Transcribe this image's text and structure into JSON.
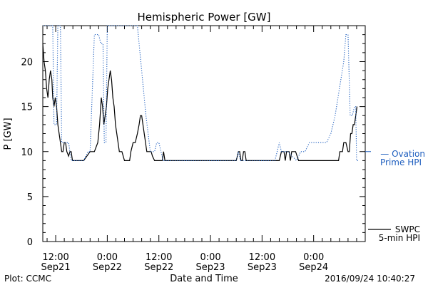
{
  "chart_data": {
    "type": "line",
    "title": "Hemispheric Power [GW]",
    "xlabel": "Date and Time",
    "ylabel": "P [GW]",
    "ylim": [
      0,
      24
    ],
    "xlim": [
      9,
      84
    ],
    "y_ticks": [
      0,
      5,
      10,
      15,
      20
    ],
    "x_ticks": [
      {
        "t": 12,
        "time": "12:00",
        "date": "Sep21"
      },
      {
        "t": 24,
        "time": "0:00",
        "date": "Sep22"
      },
      {
        "t": 36,
        "time": "12:00",
        "date": "Sep22"
      },
      {
        "t": 48,
        "time": "0:00",
        "date": "Sep23"
      },
      {
        "t": 60,
        "time": "12:00",
        "date": "Sep23"
      },
      {
        "t": 72,
        "time": "0:00",
        "date": "Sep24"
      }
    ],
    "series": [
      {
        "name_line1": "SWPC",
        "name_line2": "5-min HPI",
        "color": "#000000",
        "style": "solid",
        "x": [
          9.0,
          9.3,
          9.6,
          9.9,
          10.2,
          10.5,
          10.8,
          11.1,
          11.3,
          11.6,
          11.9,
          12.2,
          12.5,
          12.8,
          13.1,
          13.4,
          13.7,
          14.0,
          14.3,
          14.6,
          15.0,
          15.3,
          15.6,
          15.9,
          16.3,
          16.7,
          17.0,
          17.4,
          18.5,
          20.0,
          21.0,
          21.8,
          22.2,
          22.6,
          22.9,
          23.2,
          23.5,
          23.8,
          24.1,
          24.4,
          24.7,
          25.0,
          25.3,
          25.6,
          25.9,
          26.2,
          26.5,
          26.8,
          27.1,
          27.4,
          27.7,
          28.0,
          28.4,
          28.8,
          29.2,
          29.5,
          30.0,
          30.5,
          31.0,
          31.4,
          31.7,
          32.0,
          32.3,
          32.6,
          32.9,
          33.2,
          33.5,
          33.8,
          34.2,
          34.5,
          35.0,
          35.5,
          36.5,
          36.8,
          37.1,
          37.4,
          38.0,
          42.0,
          46.0,
          50.0,
          54.0,
          54.5,
          54.8,
          55.1,
          55.4,
          55.7,
          56.0,
          56.3,
          56.8,
          60.0,
          63.0,
          64.0,
          64.5,
          64.8,
          65.1,
          65.4,
          65.7,
          66.0,
          66.3,
          66.6,
          66.9,
          67.2,
          67.8,
          68.5,
          71.0,
          74.0,
          76.0,
          77.5,
          77.8,
          78.1,
          78.4,
          78.7,
          79.0,
          79.5,
          80.0,
          80.3,
          80.6,
          80.9,
          81.2,
          81.5,
          81.8,
          82.1
        ],
        "y": [
          22,
          20,
          19,
          17,
          16,
          18,
          19,
          18,
          16,
          15,
          16,
          15,
          13,
          12,
          11,
          10,
          10,
          11,
          11,
          10,
          9.5,
          10,
          10,
          9,
          9,
          9,
          9,
          9,
          9,
          10,
          10,
          11,
          13,
          16,
          15,
          13,
          14,
          15,
          17,
          18,
          19,
          18,
          16,
          15,
          13,
          12,
          11,
          10,
          10,
          10,
          9.5,
          9,
          9,
          9,
          9,
          10,
          11,
          11,
          12,
          13,
          14,
          14,
          13,
          12,
          11,
          10,
          10,
          10,
          10,
          9.5,
          9,
          9,
          9,
          9,
          10,
          9,
          9,
          9,
          9,
          9,
          9,
          10,
          10,
          9,
          9,
          10,
          10,
          9,
          9,
          9,
          9,
          9,
          10,
          10,
          10,
          9,
          10,
          10,
          10,
          9,
          10,
          10,
          10,
          9,
          9,
          9,
          9,
          9,
          9,
          10,
          10,
          10,
          11,
          11,
          10,
          10,
          12,
          12,
          13,
          13,
          14,
          15
        ]
      },
      {
        "name_line1": "— Ovation",
        "name_line2": "Prime HPI",
        "color": "#1f5fbf",
        "style": "dotted",
        "x": [
          9.0,
          11.3,
          11.6,
          12.2,
          12.5,
          12.8,
          13.1,
          13.4,
          13.7,
          14.0,
          14.3,
          14.6,
          15.0,
          15.3,
          15.6,
          16.0,
          17.0,
          18.5,
          19.5,
          20.0,
          21.0,
          21.5,
          22.0,
          22.5,
          23.0,
          23.3,
          23.7,
          24.0,
          24.3,
          24.6,
          25.0,
          25.5,
          26.0,
          26.5,
          27.0,
          27.5,
          28.0,
          28.5,
          29.0,
          30.0,
          31.0,
          32.0,
          33.0,
          34.0,
          35.0,
          35.5,
          36.0,
          36.5,
          37.0,
          40.0,
          45.0,
          50.0,
          54.0,
          54.5,
          55.0,
          55.5,
          56.0,
          60.0,
          63.0,
          63.5,
          64.0,
          64.5,
          65.0,
          65.5,
          66.0,
          68.0,
          69.0,
          70.0,
          71.0,
          72.0,
          73.0,
          74.0,
          75.0,
          76.0,
          77.0,
          78.0,
          79.0,
          79.5,
          80.0,
          80.5,
          81.0,
          81.5,
          81.8,
          82.0,
          82.3
        ],
        "y": [
          24,
          24,
          13,
          13,
          24,
          24,
          24,
          11,
          11,
          11,
          11,
          11,
          11,
          10,
          9,
          9,
          9,
          9,
          10,
          10,
          23,
          23,
          23,
          22,
          22,
          11,
          11,
          24,
          24,
          24,
          24,
          24,
          24,
          24,
          24,
          24,
          24,
          24,
          24,
          24,
          24,
          19,
          14,
          10,
          10,
          11,
          11,
          10,
          9,
          9,
          9,
          9,
          9,
          10,
          9,
          9,
          9,
          9,
          9,
          10,
          11,
          10,
          10,
          10,
          10,
          9,
          10,
          10,
          11,
          11,
          11,
          11,
          11,
          12,
          14,
          17,
          20,
          23,
          23,
          14,
          14,
          15,
          15,
          9,
          9
        ]
      }
    ],
    "right_marker_y": 10,
    "footer_left": "Plot: CCMC",
    "footer_right": "2016/09/24 10:40:27"
  }
}
